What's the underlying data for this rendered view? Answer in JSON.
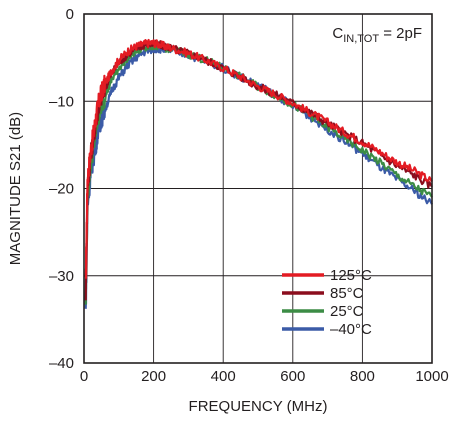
{
  "chart_data": {
    "type": "line",
    "xlabel": "FREQUENCY (MHz)",
    "ylabel": "MAGNITUDE S21 (dB)",
    "xlim": [
      0,
      1000
    ],
    "ylim": [
      -40,
      0
    ],
    "x_ticks": [
      0,
      200,
      400,
      600,
      800,
      1000
    ],
    "y_ticks": [
      0,
      -10,
      -20,
      -30,
      -40
    ],
    "x_tick_labels": [
      "0",
      "200",
      "400",
      "600",
      "800",
      "1000"
    ],
    "y_tick_labels": [
      "0",
      "–10",
      "–20",
      "–30",
      "–40"
    ],
    "grid": true,
    "legend_position": "bottom-right",
    "annotation": {
      "main": "C",
      "sub": "IN,TOT",
      "rest": " = 2pF"
    },
    "x": [
      5,
      10,
      20,
      30,
      40,
      50,
      60,
      80,
      100,
      125,
      150,
      175,
      200,
      225,
      250,
      300,
      350,
      400,
      450,
      500,
      550,
      600,
      650,
      700,
      750,
      800,
      850,
      900,
      950,
      1000
    ],
    "series": [
      {
        "name": "125°C",
        "color": "#e31b23",
        "values": [
          -31,
          -19,
          -15.5,
          -13,
          -10.5,
          -9,
          -8,
          -6.5,
          -5.3,
          -4.3,
          -3.7,
          -3.4,
          -3.3,
          -3.6,
          -3.9,
          -4.5,
          -5.3,
          -6.2,
          -7.2,
          -8.3,
          -9.2,
          -10.2,
          -11.3,
          -12.4,
          -13.6,
          -14.6,
          -15.8,
          -17.0,
          -18.0,
          -19.2
        ]
      },
      {
        "name": "85°C",
        "color": "#8b0d1d",
        "values": [
          -32,
          -20,
          -16,
          -13.5,
          -11,
          -9.5,
          -8.5,
          -6.8,
          -5.6,
          -4.6,
          -3.9,
          -3.5,
          -3.4,
          -3.6,
          -3.9,
          -4.5,
          -5.3,
          -6.2,
          -7.2,
          -8.3,
          -9.2,
          -10.2,
          -11.3,
          -12.5,
          -13.7,
          -14.8,
          -16.1,
          -17.4,
          -18.5,
          -19.8
        ]
      },
      {
        "name": "25°C",
        "color": "#3c8c45",
        "values": [
          -33,
          -21,
          -17,
          -14.5,
          -12,
          -10.5,
          -9.5,
          -7.5,
          -6.2,
          -5.0,
          -4.3,
          -3.8,
          -3.6,
          -3.8,
          -4.0,
          -4.6,
          -5.3,
          -6.2,
          -7.2,
          -8.3,
          -9.3,
          -10.4,
          -11.6,
          -13.0,
          -14.3,
          -15.6,
          -17.0,
          -18.5,
          -19.8,
          -21.0
        ]
      },
      {
        "name": "–40°C",
        "color": "#3b5ba7",
        "values": [
          -34,
          -22,
          -18,
          -16,
          -13.5,
          -12,
          -11,
          -8.8,
          -7.3,
          -5.9,
          -5.0,
          -4.3,
          -4.0,
          -4.0,
          -4.2,
          -4.7,
          -5.4,
          -6.2,
          -7.2,
          -8.2,
          -9.3,
          -10.5,
          -11.8,
          -13.2,
          -14.6,
          -16.0,
          -17.5,
          -19.0,
          -20.3,
          -21.8
        ]
      }
    ]
  }
}
